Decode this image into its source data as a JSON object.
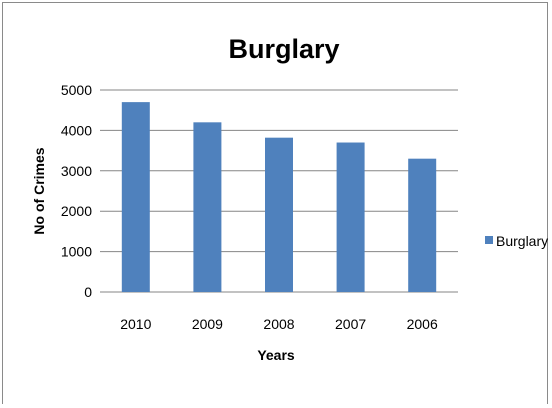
{
  "chart_data": {
    "type": "bar",
    "title": "Burglary",
    "xlabel": "Years",
    "ylabel": "No of Crimes",
    "categories": [
      "2010",
      "2009",
      "2008",
      "2007",
      "2006"
    ],
    "series": [
      {
        "name": "Burglary",
        "values": [
          4700,
          4200,
          3820,
          3700,
          3300
        ]
      }
    ],
    "ylim": [
      0,
      5000
    ],
    "yticks": [
      "0",
      "1000",
      "2000",
      "3000",
      "4000",
      "5000"
    ],
    "grid": true,
    "legend_position": "right",
    "colors": {
      "bar": "#4f81bd",
      "grid": "#868686"
    }
  }
}
